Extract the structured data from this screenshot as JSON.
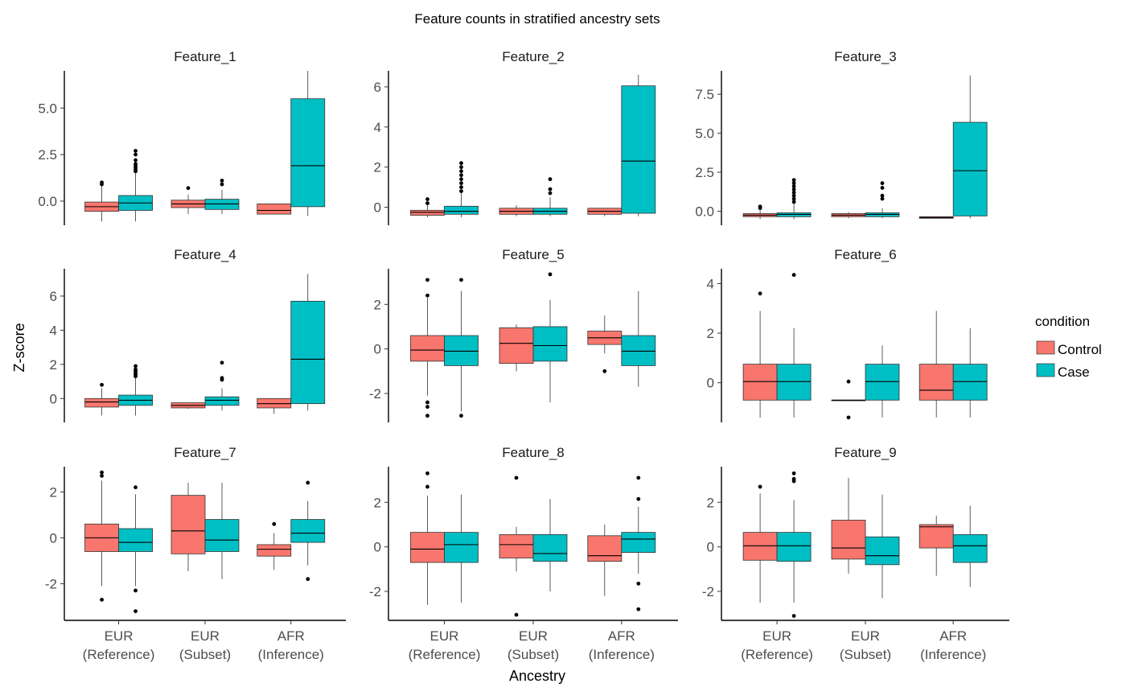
{
  "chart_data": {
    "type": "boxplot",
    "title": "Feature counts in stratified ancestry sets",
    "xlabel": "Ancestry",
    "ylabel": "Z-score",
    "categories": [
      "EUR\n(Reference)",
      "EUR\n(Subset)",
      "AFR\n(Inference)"
    ],
    "legend": {
      "title": "condition",
      "position": "right",
      "entries": [
        {
          "name": "Control",
          "color": "#F8766D"
        },
        {
          "name": "Case",
          "color": "#00BFC4"
        }
      ]
    },
    "panels": [
      {
        "name": "Feature_1",
        "ylim": [
          -1.3,
          7.0
        ],
        "yticks": [
          0,
          2.5,
          5
        ],
        "yticklabels": [
          "0.0",
          "2.5",
          "5.0"
        ],
        "boxes": [
          {
            "category": 0,
            "group": "Control",
            "whislo": -1.1,
            "q1": -0.55,
            "med": -0.3,
            "q3": -0.05,
            "whishi": 0.8,
            "outliers": [
              0.9,
              1.0
            ]
          },
          {
            "category": 0,
            "group": "Case",
            "whislo": -1.1,
            "q1": -0.5,
            "med": -0.1,
            "q3": 0.3,
            "whishi": 1.5,
            "outliers": [
              1.6,
              1.7,
              1.8,
              1.9,
              2.0,
              2.2,
              2.5,
              2.7
            ]
          },
          {
            "category": 1,
            "group": "Control",
            "whislo": -0.7,
            "q1": -0.35,
            "med": -0.15,
            "q3": 0.05,
            "whishi": 0.35,
            "outliers": [
              0.7
            ]
          },
          {
            "category": 1,
            "group": "Case",
            "whislo": -0.7,
            "q1": -0.45,
            "med": -0.15,
            "q3": 0.1,
            "whishi": 0.6,
            "outliers": [
              0.9,
              1.1
            ]
          },
          {
            "category": 2,
            "group": "Control",
            "whislo": -0.7,
            "q1": -0.7,
            "med": -0.5,
            "q3": -0.15,
            "whishi": -0.15,
            "outliers": []
          },
          {
            "category": 2,
            "group": "Case",
            "whislo": -0.8,
            "q1": -0.3,
            "med": 1.9,
            "q3": 5.5,
            "whishi": 7.0,
            "outliers": []
          }
        ]
      },
      {
        "name": "Feature_2",
        "ylim": [
          -0.9,
          6.8
        ],
        "yticks": [
          0,
          2,
          4,
          6
        ],
        "yticklabels": [
          "0",
          "2",
          "4",
          "6"
        ],
        "boxes": [
          {
            "category": 0,
            "group": "Control",
            "whislo": -0.5,
            "q1": -0.4,
            "med": -0.25,
            "q3": -0.15,
            "whishi": 0.1,
            "outliers": [
              0.2,
              0.4
            ]
          },
          {
            "category": 0,
            "group": "Case",
            "whislo": -0.5,
            "q1": -0.35,
            "med": -0.2,
            "q3": 0.05,
            "whishi": 0.7,
            "outliers": [
              0.8,
              1.0,
              1.2,
              1.4,
              1.6,
              1.8,
              2.0,
              2.2
            ]
          },
          {
            "category": 1,
            "group": "Control",
            "whislo": -0.45,
            "q1": -0.35,
            "med": -0.2,
            "q3": -0.05,
            "whishi": 0.1,
            "outliers": []
          },
          {
            "category": 1,
            "group": "Case",
            "whislo": -0.45,
            "q1": -0.35,
            "med": -0.2,
            "q3": -0.05,
            "whishi": 0.5,
            "outliers": [
              0.7,
              0.9,
              1.4
            ]
          },
          {
            "category": 2,
            "group": "Control",
            "whislo": -0.45,
            "q1": -0.35,
            "med": -0.2,
            "q3": -0.05,
            "whishi": -0.05,
            "outliers": []
          },
          {
            "category": 2,
            "group": "Case",
            "whislo": -0.45,
            "q1": -0.3,
            "med": 2.3,
            "q3": 6.05,
            "whishi": 6.6,
            "outliers": []
          }
        ]
      },
      {
        "name": "Feature_3",
        "ylim": [
          -0.9,
          9.0
        ],
        "yticks": [
          0,
          2.5,
          5,
          7.5
        ],
        "yticklabels": [
          "0.0",
          "2.5",
          "5.0",
          "7.5"
        ],
        "boxes": [
          {
            "category": 0,
            "group": "Control",
            "whislo": -0.5,
            "q1": -0.35,
            "med": -0.25,
            "q3": -0.15,
            "whishi": 0.05,
            "outliers": [
              0.2,
              0.3
            ]
          },
          {
            "category": 0,
            "group": "Case",
            "whislo": -0.5,
            "q1": -0.35,
            "med": -0.2,
            "q3": -0.1,
            "whishi": 0.5,
            "outliers": [
              0.6,
              0.8,
              1.0,
              1.2,
              1.4,
              1.6,
              1.8,
              2.0
            ]
          },
          {
            "category": 1,
            "group": "Control",
            "whislo": -0.45,
            "q1": -0.35,
            "med": -0.25,
            "q3": -0.15,
            "whishi": -0.05,
            "outliers": []
          },
          {
            "category": 1,
            "group": "Case",
            "whislo": -0.45,
            "q1": -0.35,
            "med": -0.2,
            "q3": -0.1,
            "whishi": 0.2,
            "outliers": [
              0.8,
              1.0,
              1.5,
              1.8
            ]
          },
          {
            "category": 2,
            "group": "Control",
            "whislo": -0.45,
            "q1": -0.45,
            "med": -0.4,
            "q3": -0.35,
            "whishi": -0.35,
            "outliers": []
          },
          {
            "category": 2,
            "group": "Case",
            "whislo": -0.45,
            "q1": -0.3,
            "med": 2.6,
            "q3": 5.7,
            "whishi": 8.7,
            "outliers": []
          }
        ]
      },
      {
        "name": "Feature_4",
        "ylim": [
          -1.4,
          7.6
        ],
        "yticks": [
          0,
          2,
          4,
          6
        ],
        "yticklabels": [
          "0",
          "2",
          "4",
          "6"
        ],
        "boxes": [
          {
            "category": 0,
            "group": "Control",
            "whislo": -1.0,
            "q1": -0.5,
            "med": -0.2,
            "q3": 0.0,
            "whishi": 0.6,
            "outliers": [
              0.8
            ]
          },
          {
            "category": 0,
            "group": "Case",
            "whislo": -1.0,
            "q1": -0.4,
            "med": -0.1,
            "q3": 0.2,
            "whishi": 1.2,
            "outliers": [
              1.3,
              1.4,
              1.5,
              1.6,
              1.7,
              1.9
            ]
          },
          {
            "category": 1,
            "group": "Control",
            "whislo": -0.6,
            "q1": -0.55,
            "med": -0.4,
            "q3": -0.25,
            "whishi": -0.25,
            "outliers": []
          },
          {
            "category": 1,
            "group": "Case",
            "whislo": -0.7,
            "q1": -0.4,
            "med": -0.1,
            "q3": 0.1,
            "whishi": 0.6,
            "outliers": [
              1.1,
              1.2,
              2.1
            ]
          },
          {
            "category": 2,
            "group": "Control",
            "whislo": -0.9,
            "q1": -0.55,
            "med": -0.3,
            "q3": 0.0,
            "whishi": 0.0,
            "outliers": []
          },
          {
            "category": 2,
            "group": "Case",
            "whislo": -0.7,
            "q1": -0.3,
            "med": 2.3,
            "q3": 5.7,
            "whishi": 7.3,
            "outliers": []
          }
        ]
      },
      {
        "name": "Feature_5",
        "ylim": [
          -3.3,
          3.6
        ],
        "yticks": [
          -2,
          0,
          2
        ],
        "yticklabels": [
          "-2",
          "0",
          "2"
        ],
        "boxes": [
          {
            "category": 0,
            "group": "Control",
            "whislo": -2.1,
            "q1": -0.55,
            "med": -0.05,
            "q3": 0.6,
            "whishi": 2.3,
            "outliers": [
              -3.0,
              -2.6,
              -2.4,
              2.4,
              3.1
            ]
          },
          {
            "category": 0,
            "group": "Case",
            "whislo": -2.8,
            "q1": -0.75,
            "med": -0.1,
            "q3": 0.6,
            "whishi": 2.6,
            "outliers": [
              -3.0,
              3.1
            ]
          },
          {
            "category": 1,
            "group": "Control",
            "whislo": -1.0,
            "q1": -0.65,
            "med": 0.25,
            "q3": 0.95,
            "whishi": 1.1,
            "outliers": []
          },
          {
            "category": 1,
            "group": "Case",
            "whislo": -2.4,
            "q1": -0.55,
            "med": 0.15,
            "q3": 1.0,
            "whishi": 2.2,
            "outliers": [
              3.35
            ]
          },
          {
            "category": 2,
            "group": "Control",
            "whislo": -0.2,
            "q1": 0.2,
            "med": 0.5,
            "q3": 0.8,
            "whishi": 1.5,
            "outliers": [
              -1.0
            ]
          },
          {
            "category": 2,
            "group": "Case",
            "whislo": -1.7,
            "q1": -0.75,
            "med": -0.1,
            "q3": 0.6,
            "whishi": 2.6,
            "outliers": []
          }
        ]
      },
      {
        "name": "Feature_6",
        "ylim": [
          -1.6,
          4.6
        ],
        "yticks": [
          0,
          2,
          4
        ],
        "yticklabels": [
          "0",
          "2",
          "4"
        ],
        "boxes": [
          {
            "category": 0,
            "group": "Control",
            "whislo": -1.4,
            "q1": -0.7,
            "med": 0.05,
            "q3": 0.75,
            "whishi": 2.9,
            "outliers": [
              3.6
            ]
          },
          {
            "category": 0,
            "group": "Case",
            "whislo": -1.4,
            "q1": -0.7,
            "med": 0.05,
            "q3": 0.75,
            "whishi": 2.2,
            "outliers": [
              4.35
            ]
          },
          {
            "category": 1,
            "group": "Control",
            "whislo": -0.7,
            "q1": -0.7,
            "med": -0.7,
            "q3": -0.7,
            "whishi": -0.7,
            "outliers": [
              -1.4,
              0.05
            ]
          },
          {
            "category": 1,
            "group": "Case",
            "whislo": -1.4,
            "q1": -0.7,
            "med": 0.05,
            "q3": 0.75,
            "whishi": 1.5,
            "outliers": []
          },
          {
            "category": 2,
            "group": "Control",
            "whislo": -1.4,
            "q1": -0.7,
            "med": -0.3,
            "q3": 0.75,
            "whishi": 2.9,
            "outliers": []
          },
          {
            "category": 2,
            "group": "Case",
            "whislo": -1.4,
            "q1": -0.7,
            "med": 0.05,
            "q3": 0.75,
            "whishi": 2.2,
            "outliers": []
          }
        ]
      },
      {
        "name": "Feature_7",
        "ylim": [
          -3.6,
          3.1
        ],
        "yticks": [
          -2,
          0,
          2
        ],
        "yticklabels": [
          "-2",
          "0",
          "2"
        ],
        "boxes": [
          {
            "category": 0,
            "group": "Control",
            "whislo": -2.1,
            "q1": -0.6,
            "med": 0.0,
            "q3": 0.6,
            "whishi": 2.5,
            "outliers": [
              -2.7,
              2.7,
              2.85
            ]
          },
          {
            "category": 0,
            "group": "Case",
            "whislo": -2.1,
            "q1": -0.6,
            "med": -0.2,
            "q3": 0.4,
            "whishi": 1.9,
            "outliers": [
              -3.2,
              -2.3,
              2.2
            ]
          },
          {
            "category": 1,
            "group": "Control",
            "whislo": -1.45,
            "q1": -0.7,
            "med": 0.3,
            "q3": 1.85,
            "whishi": 2.4,
            "outliers": []
          },
          {
            "category": 1,
            "group": "Case",
            "whislo": -1.8,
            "q1": -0.6,
            "med": -0.1,
            "q3": 0.8,
            "whishi": 2.4,
            "outliers": []
          },
          {
            "category": 2,
            "group": "Control",
            "whislo": -1.4,
            "q1": -0.8,
            "med": -0.5,
            "q3": -0.3,
            "whishi": 0.2,
            "outliers": [
              0.6
            ]
          },
          {
            "category": 2,
            "group": "Case",
            "whislo": -1.2,
            "q1": -0.2,
            "med": 0.2,
            "q3": 0.8,
            "whishi": 1.6,
            "outliers": [
              -1.8,
              2.4
            ]
          }
        ]
      },
      {
        "name": "Feature_8",
        "ylim": [
          -3.3,
          3.6
        ],
        "yticks": [
          -2,
          0,
          2
        ],
        "yticklabels": [
          "-2",
          "0",
          "2"
        ],
        "boxes": [
          {
            "category": 0,
            "group": "Control",
            "whislo": -2.6,
            "q1": -0.7,
            "med": -0.1,
            "q3": 0.65,
            "whishi": 2.3,
            "outliers": [
              2.7,
              3.3
            ]
          },
          {
            "category": 0,
            "group": "Case",
            "whislo": -2.5,
            "q1": -0.7,
            "med": 0.1,
            "q3": 0.65,
            "whishi": 2.35,
            "outliers": []
          },
          {
            "category": 1,
            "group": "Control",
            "whislo": -1.1,
            "q1": -0.5,
            "med": 0.1,
            "q3": 0.55,
            "whishi": 0.9,
            "outliers": [
              -3.05,
              3.1
            ]
          },
          {
            "category": 1,
            "group": "Case",
            "whislo": -2.0,
            "q1": -0.65,
            "med": -0.3,
            "q3": 0.55,
            "whishi": 2.15,
            "outliers": []
          },
          {
            "category": 2,
            "group": "Control",
            "whislo": -2.2,
            "q1": -0.65,
            "med": -0.4,
            "q3": 0.5,
            "whishi": 1.0,
            "outliers": []
          },
          {
            "category": 2,
            "group": "Case",
            "whislo": -1.2,
            "q1": -0.25,
            "med": 0.35,
            "q3": 0.65,
            "whishi": 1.8,
            "outliers": [
              -2.8,
              -1.65,
              2.15,
              3.1
            ]
          }
        ]
      },
      {
        "name": "Feature_9",
        "ylim": [
          -3.3,
          3.6
        ],
        "yticks": [
          -2,
          0,
          2
        ],
        "yticklabels": [
          "-2",
          "0",
          "2"
        ],
        "boxes": [
          {
            "category": 0,
            "group": "Control",
            "whislo": -2.5,
            "q1": -0.6,
            "med": 0.05,
            "q3": 0.65,
            "whishi": 2.4,
            "outliers": [
              2.7
            ]
          },
          {
            "category": 0,
            "group": "Case",
            "whislo": -2.5,
            "q1": -0.65,
            "med": 0.05,
            "q3": 0.65,
            "whishi": 2.1,
            "outliers": [
              -3.1,
              2.95,
              3.05,
              3.3
            ]
          },
          {
            "category": 1,
            "group": "Control",
            "whislo": -1.2,
            "q1": -0.55,
            "med": -0.05,
            "q3": 1.2,
            "whishi": 3.1,
            "outliers": []
          },
          {
            "category": 1,
            "group": "Case",
            "whislo": -2.3,
            "q1": -0.8,
            "med": -0.4,
            "q3": 0.45,
            "whishi": 2.35,
            "outliers": []
          },
          {
            "category": 2,
            "group": "Control",
            "whislo": -1.3,
            "q1": -0.05,
            "med": 0.9,
            "q3": 1.0,
            "whishi": 1.4,
            "outliers": []
          },
          {
            "category": 2,
            "group": "Case",
            "whislo": -1.8,
            "q1": -0.7,
            "med": 0.05,
            "q3": 0.55,
            "whishi": 1.85,
            "outliers": []
          }
        ]
      }
    ]
  }
}
